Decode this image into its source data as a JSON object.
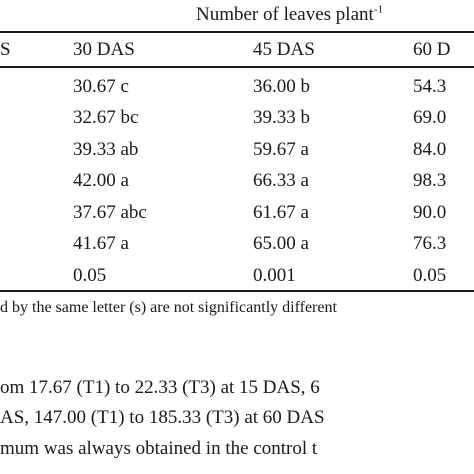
{
  "table": {
    "group_header": "Number of leaves plant",
    "group_header_sup": "-1",
    "columns": [
      "S",
      "30 DAS",
      "45 DAS",
      "60 D"
    ],
    "rows": [
      {
        "c30": "30.67 c",
        "c45": "36.00 b",
        "c60": "54.3"
      },
      {
        "c30": "32.67 bc",
        "c45": "39.33 b",
        "c60": "69.0"
      },
      {
        "c30": "39.33 ab",
        "c45": "59.67 a",
        "c60": "84.0"
      },
      {
        "c30": "42.00 a",
        "c45": "66.33 a",
        "c60": "98.3"
      },
      {
        "c30": "37.67 abc",
        "c45": "61.67 a",
        "c60": "90.0"
      },
      {
        "c30": "41.67 a",
        "c45": "65.00 a",
        "c60": "76.3"
      },
      {
        "c30": "0.05",
        "c45": "0.001",
        "c60": "0.05"
      }
    ],
    "footnote": "d by the same letter (s) are not significantly different"
  },
  "text": {
    "line1": "om 17.67 (T1) to 22.33 (T3) at 15 DAS, 6",
    "line2": "AS, 147.00 (T1) to 185.33 (T3) at 60 DAS",
    "line3": "mum was always obtained in the control t"
  }
}
